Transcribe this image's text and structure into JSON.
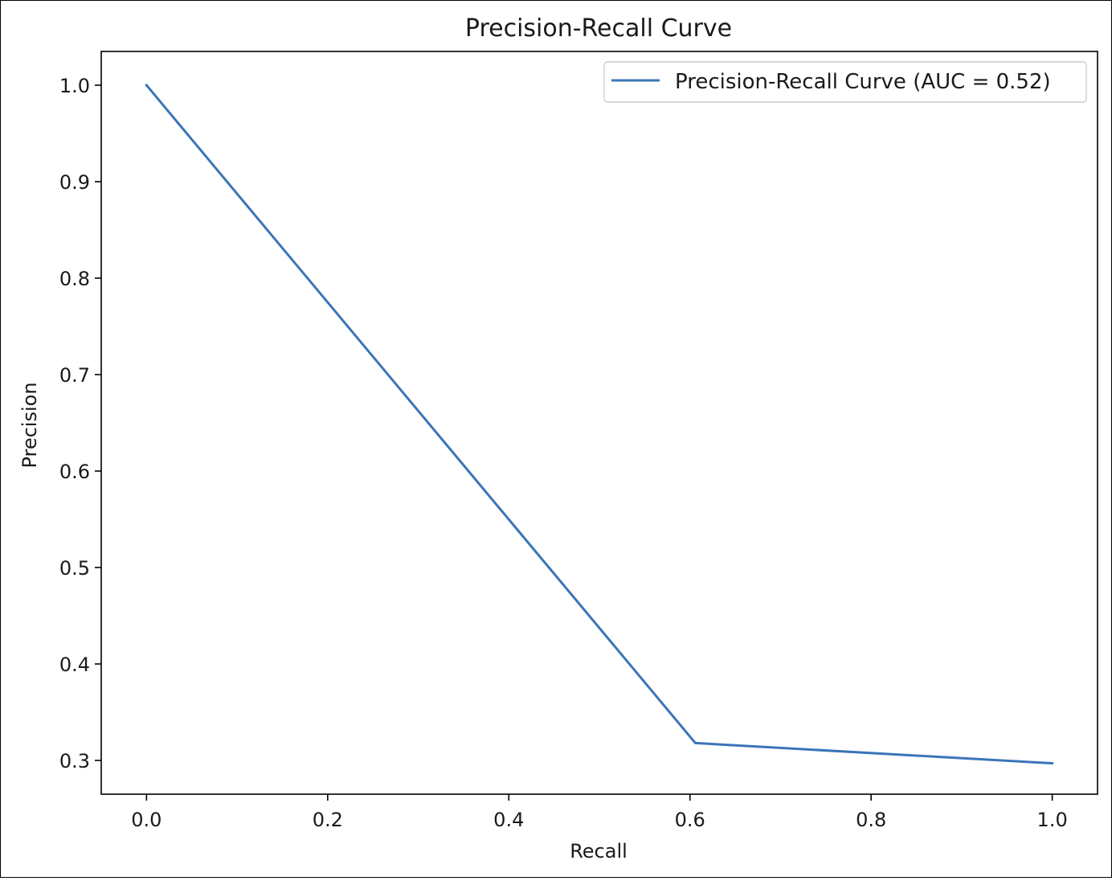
{
  "chart_data": {
    "type": "line",
    "title": "Precision-Recall Curve",
    "xlabel": "Recall",
    "ylabel": "Precision",
    "xlim": [
      -0.05,
      1.05
    ],
    "ylim": [
      0.265,
      1.035
    ],
    "xticks": [
      0.0,
      0.2,
      0.4,
      0.6,
      0.8,
      1.0
    ],
    "xtick_labels": [
      "0.0",
      "0.2",
      "0.4",
      "0.6",
      "0.8",
      "1.0"
    ],
    "yticks": [
      0.3,
      0.4,
      0.5,
      0.6,
      0.7,
      0.8,
      0.9,
      1.0
    ],
    "ytick_labels": [
      "0.3",
      "0.4",
      "0.5",
      "0.6",
      "0.7",
      "0.8",
      "0.9",
      "1.0"
    ],
    "grid": false,
    "legend_position": "top-right",
    "series": [
      {
        "name": "Precision-Recall Curve (AUC = 0.52)",
        "color": "#3a75b8",
        "x": [
          0.0,
          0.606,
          1.0
        ],
        "y": [
          1.0,
          0.318,
          0.297
        ]
      }
    ]
  }
}
